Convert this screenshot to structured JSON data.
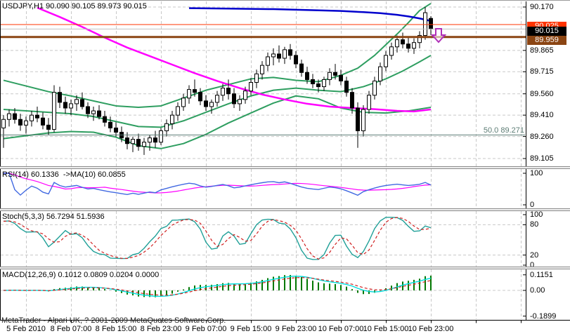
{
  "window": {
    "title_line": "USDJPY,H1 90.090 90.105 89.973 90.015",
    "copyright": "MetaTrader - Alpari UK, ? 2001-2009 MetaQuotes Software Corp."
  },
  "colors": {
    "background": "#ffffff",
    "grid": "#c8c8c8",
    "candle_up_fill": "#ffffff",
    "candle_down_fill": "#000000",
    "candle_border": "#000000",
    "ma_blue": "#0000cd",
    "ma_magenta": "#ff00ff",
    "band_green": "#2e9e60",
    "resistance_orange": "#ff3300",
    "current_price_silver": "#c0c0c0",
    "support_brown": "#8b4513",
    "fibo_gray": "#5c7c74",
    "arrow_violet": "#b030b8"
  },
  "chart_data": {
    "type": "candlestick",
    "symbol": "USDJPY",
    "timeframe": "H1",
    "current_ohlc": {
      "open": "90.090",
      "high": "90.105",
      "low": "89.973",
      "close": "90.015"
    },
    "time_labels": [
      "5 Feb 2010",
      "8 Feb 07:00",
      "8 Feb 15:00",
      "8 Feb 23:00",
      "9 Feb 07:00",
      "9 Feb 15:00",
      "9 Feb 23:00",
      "10 Feb 07:00",
      "10 Feb 15:00",
      "10 Feb 23:00"
    ],
    "price_axis": {
      "labels": [
        "90.170",
        "89.865",
        "89.715",
        "89.560",
        "89.410",
        "89.260",
        "89.105"
      ],
      "max": 90.17,
      "min": 89.105
    },
    "candles": [
      [
        89.32,
        89.41,
        89.18,
        89.38
      ],
      [
        89.38,
        89.45,
        89.33,
        89.42
      ],
      [
        89.42,
        89.46,
        89.35,
        89.38
      ],
      [
        89.38,
        89.42,
        89.3,
        89.34
      ],
      [
        89.34,
        89.4,
        89.28,
        89.37
      ],
      [
        89.37,
        89.44,
        89.33,
        89.41
      ],
      [
        89.41,
        89.47,
        89.36,
        89.39
      ],
      [
        89.39,
        89.43,
        89.31,
        89.34
      ],
      [
        89.34,
        89.39,
        89.27,
        89.31
      ],
      [
        89.31,
        89.62,
        89.29,
        89.57
      ],
      [
        89.57,
        89.61,
        89.46,
        89.5
      ],
      [
        89.5,
        89.54,
        89.42,
        89.46
      ],
      [
        89.46,
        89.52,
        89.41,
        89.49
      ],
      [
        89.49,
        89.55,
        89.44,
        89.52
      ],
      [
        89.52,
        89.57,
        89.45,
        89.47
      ],
      [
        89.47,
        89.5,
        89.39,
        89.42
      ],
      [
        89.42,
        89.47,
        89.37,
        89.44
      ],
      [
        89.44,
        89.48,
        89.38,
        89.4
      ],
      [
        89.4,
        89.44,
        89.33,
        89.36
      ],
      [
        89.36,
        89.4,
        89.29,
        89.32
      ],
      [
        89.32,
        89.36,
        89.26,
        89.29
      ],
      [
        89.29,
        89.33,
        89.22,
        89.25
      ],
      [
        89.25,
        89.29,
        89.17,
        89.21
      ],
      [
        89.21,
        89.26,
        89.15,
        89.24
      ],
      [
        89.24,
        89.28,
        89.16,
        89.19
      ],
      [
        89.19,
        89.25,
        89.13,
        89.22
      ],
      [
        89.22,
        89.27,
        89.16,
        89.25
      ],
      [
        89.25,
        89.3,
        89.18,
        89.22
      ],
      [
        89.22,
        89.32,
        89.2,
        89.3
      ],
      [
        89.3,
        89.38,
        89.26,
        89.35
      ],
      [
        89.35,
        89.44,
        89.31,
        89.41
      ],
      [
        89.41,
        89.5,
        89.37,
        89.47
      ],
      [
        89.47,
        89.56,
        89.44,
        89.53
      ],
      [
        89.53,
        89.62,
        89.49,
        89.59
      ],
      [
        89.59,
        89.66,
        89.54,
        89.57
      ],
      [
        89.57,
        89.6,
        89.48,
        89.51
      ],
      [
        89.51,
        89.55,
        89.44,
        89.47
      ],
      [
        89.47,
        89.52,
        89.42,
        89.5
      ],
      [
        89.5,
        89.58,
        89.47,
        89.55
      ],
      [
        89.55,
        89.63,
        89.51,
        89.6
      ],
      [
        89.6,
        89.66,
        89.52,
        89.56
      ],
      [
        89.56,
        89.6,
        89.46,
        89.49
      ],
      [
        89.49,
        89.55,
        89.44,
        89.52
      ],
      [
        89.52,
        89.61,
        89.49,
        89.58
      ],
      [
        89.58,
        89.67,
        89.55,
        89.64
      ],
      [
        89.64,
        89.73,
        89.6,
        89.7
      ],
      [
        89.7,
        89.79,
        89.66,
        89.76
      ],
      [
        89.76,
        89.85,
        89.72,
        89.82
      ],
      [
        89.82,
        89.88,
        89.76,
        89.84
      ],
      [
        89.84,
        89.9,
        89.78,
        89.81
      ],
      [
        89.81,
        89.89,
        89.77,
        89.87
      ],
      [
        89.87,
        89.91,
        89.8,
        89.83
      ],
      [
        89.83,
        89.86,
        89.74,
        89.77
      ],
      [
        89.77,
        89.8,
        89.68,
        89.71
      ],
      [
        89.71,
        89.75,
        89.63,
        89.66
      ],
      [
        89.66,
        89.7,
        89.6,
        89.63
      ],
      [
        89.63,
        89.66,
        89.57,
        89.61
      ],
      [
        89.61,
        89.68,
        89.58,
        89.66
      ],
      [
        89.66,
        89.74,
        89.62,
        89.71
      ],
      [
        89.71,
        89.77,
        89.66,
        89.69
      ],
      [
        89.69,
        89.73,
        89.62,
        89.65
      ],
      [
        89.65,
        89.68,
        89.54,
        89.57
      ],
      [
        89.57,
        89.6,
        89.42,
        89.46
      ],
      [
        89.46,
        89.5,
        89.18,
        89.3
      ],
      [
        89.3,
        89.48,
        89.26,
        89.45
      ],
      [
        89.45,
        89.58,
        89.42,
        89.55
      ],
      [
        89.55,
        89.68,
        89.52,
        89.65
      ],
      [
        89.65,
        89.78,
        89.62,
        89.75
      ],
      [
        89.75,
        89.86,
        89.72,
        89.83
      ],
      [
        89.83,
        89.92,
        89.8,
        89.89
      ],
      [
        89.89,
        89.97,
        89.85,
        89.94
      ],
      [
        89.94,
        89.99,
        89.88,
        89.91
      ],
      [
        89.91,
        89.96,
        89.85,
        89.88
      ],
      [
        89.88,
        89.95,
        89.84,
        89.92
      ],
      [
        89.92,
        90.0,
        89.88,
        89.97
      ],
      [
        89.97,
        90.17,
        89.94,
        90.13
      ],
      [
        90.09,
        90.105,
        89.973,
        90.015
      ]
    ],
    "overlays": {
      "ma_blue": [
        [
          33,
          90.162
        ],
        [
          40,
          90.159
        ],
        [
          48,
          90.155
        ],
        [
          55,
          90.148
        ],
        [
          60,
          90.142
        ],
        [
          64,
          90.134
        ],
        [
          67,
          90.127
        ],
        [
          70,
          90.115
        ],
        [
          72,
          90.104
        ],
        [
          74,
          90.09
        ],
        [
          76,
          90.072
        ]
      ],
      "ma_magenta": [
        [
          6,
          90.165
        ],
        [
          10,
          90.1
        ],
        [
          14,
          90.03
        ],
        [
          18,
          89.955
        ],
        [
          22,
          89.885
        ],
        [
          26,
          89.825
        ],
        [
          30,
          89.765
        ],
        [
          34,
          89.705
        ],
        [
          38,
          89.65
        ],
        [
          42,
          89.6
        ],
        [
          46,
          89.555
        ],
        [
          50,
          89.52
        ],
        [
          54,
          89.49
        ],
        [
          58,
          89.47
        ],
        [
          62,
          89.46
        ],
        [
          66,
          89.452
        ],
        [
          70,
          89.44
        ],
        [
          73,
          89.436
        ],
        [
          76,
          89.45
        ]
      ],
      "band_upper": [
        [
          0,
          89.655
        ],
        [
          4,
          89.615
        ],
        [
          8,
          89.575
        ],
        [
          12,
          89.545
        ],
        [
          16,
          89.51
        ],
        [
          20,
          89.475
        ],
        [
          24,
          89.465
        ],
        [
          28,
          89.475
        ],
        [
          32,
          89.53
        ],
        [
          36,
          89.585
        ],
        [
          40,
          89.625
        ],
        [
          44,
          89.665
        ],
        [
          48,
          89.675
        ],
        [
          52,
          89.655
        ],
        [
          56,
          89.645
        ],
        [
          60,
          89.69
        ],
        [
          63,
          89.74
        ],
        [
          66,
          89.83
        ],
        [
          68,
          89.905
        ],
        [
          70,
          89.98
        ],
        [
          72,
          90.06
        ],
        [
          74,
          90.145
        ],
        [
          76,
          90.195
        ]
      ],
      "band_middle": [
        [
          0,
          89.45
        ],
        [
          4,
          89.44
        ],
        [
          8,
          89.43
        ],
        [
          12,
          89.42
        ],
        [
          16,
          89.4
        ],
        [
          20,
          89.365
        ],
        [
          24,
          89.33
        ],
        [
          28,
          89.325
        ],
        [
          32,
          89.37
        ],
        [
          36,
          89.43
        ],
        [
          40,
          89.49
        ],
        [
          44,
          89.545
        ],
        [
          48,
          89.585
        ],
        [
          52,
          89.6
        ],
        [
          56,
          89.585
        ],
        [
          60,
          89.575
        ],
        [
          64,
          89.61
        ],
        [
          68,
          89.665
        ],
        [
          71,
          89.72
        ],
        [
          74,
          89.785
        ],
        [
          76,
          89.83
        ]
      ],
      "band_lower": [
        [
          0,
          89.245
        ],
        [
          4,
          89.265
        ],
        [
          8,
          89.285
        ],
        [
          12,
          89.295
        ],
        [
          16,
          89.29
        ],
        [
          20,
          89.255
        ],
        [
          24,
          89.195
        ],
        [
          28,
          89.175
        ],
        [
          32,
          89.21
        ],
        [
          36,
          89.275
        ],
        [
          40,
          89.355
        ],
        [
          44,
          89.425
        ],
        [
          48,
          89.495
        ],
        [
          52,
          89.545
        ],
        [
          56,
          89.525
        ],
        [
          60,
          89.46
        ],
        [
          64,
          89.43
        ],
        [
          68,
          89.425
        ],
        [
          72,
          89.44
        ],
        [
          76,
          89.465
        ]
      ]
    },
    "hlines": [
      {
        "name": "resistance-line",
        "price_label": "90.025",
        "color": "#ff3300",
        "width": 1
      },
      {
        "name": "current-price-line",
        "price_label": "90.015",
        "price": 90.015,
        "color": "#c0c0c0",
        "width": 1
      },
      {
        "name": "support-line",
        "price_label": "89.959",
        "price": 89.959,
        "color": "#8b4513",
        "width": 3
      }
    ],
    "fibo": {
      "label": "50.0 89.271",
      "price": 89.271,
      "color": "#5c7c74"
    },
    "arrow_object": {
      "type": "down-arrow",
      "color": "#b030b8"
    }
  },
  "indicators": {
    "rsi": {
      "label": "RSI(14) 60.1336  ->MA(10) 60.0855",
      "period": 14,
      "ma_period": 10,
      "current": "60.1336",
      "current_ma": "60.0855",
      "axis": [
        {
          "text": "100",
          "v": 100
        },
        {
          "text": "0",
          "v": 0
        }
      ],
      "line_color": "#4169e1",
      "signal_color": "#ff00ff"
    },
    "stoch": {
      "label": "Stoch(5,3,3) 56.7294 51.5936",
      "k": 5,
      "d": 3,
      "slowing": 3,
      "current_k": "56.7294",
      "current_d": "51.5936",
      "axis": [
        {
          "text": "100",
          "v": 100
        },
        {
          "text": "80",
          "v": 80
        },
        {
          "text": "20",
          "v": 20
        },
        {
          "text": "0",
          "v": 0
        }
      ],
      "levels": [
        80,
        20
      ],
      "line_color": "#20a098",
      "signal_color": "#d02020"
    },
    "macd": {
      "label": "MACD(12,26,9) 0.1012 0.0809 0.0204 0.0000",
      "fast": 12,
      "slow": 26,
      "signal": 9,
      "values": [
        "0.1012",
        "0.0809",
        "0.0204",
        "0.0000"
      ],
      "axis": [
        {
          "text": "0.1151",
          "v": 0.1151
        },
        {
          "text": "0.00",
          "v": 0
        },
        {
          "text": "-0.1899",
          "v": -0.1899
        }
      ],
      "hist_color": "#007800",
      "line_color": "#00dcdc",
      "signal_color": "#d02020"
    }
  }
}
